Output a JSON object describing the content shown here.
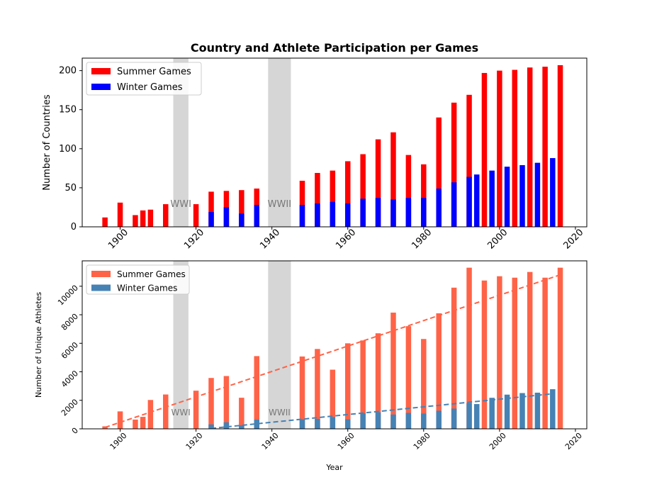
{
  "chart_data": [
    {
      "type": "bar",
      "title": "Country and Athlete Participation per Games",
      "xlabel": "",
      "ylabel": "Number of Countries",
      "xlim": [
        1890,
        2023
      ],
      "ylim": [
        0,
        216
      ],
      "xticks": [
        1900,
        1920,
        1940,
        1960,
        1980,
        2000,
        2020
      ],
      "yticks": [
        0,
        50,
        100,
        150,
        200
      ],
      "grid": false,
      "legend_position": "top-left",
      "shaded_periods": [
        {
          "label": "WWI",
          "start": 1914,
          "end": 1918
        },
        {
          "label": "WWII",
          "start": 1939,
          "end": 1945
        }
      ],
      "series": [
        {
          "name": "Summer Games",
          "color": "#ff0000",
          "points": [
            {
              "x": 1896,
              "y": 12
            },
            {
              "x": 1900,
              "y": 31
            },
            {
              "x": 1904,
              "y": 15
            },
            {
              "x": 1906,
              "y": 21
            },
            {
              "x": 1908,
              "y": 22
            },
            {
              "x": 1912,
              "y": 29
            },
            {
              "x": 1920,
              "y": 29
            },
            {
              "x": 1924,
              "y": 45
            },
            {
              "x": 1928,
              "y": 46
            },
            {
              "x": 1932,
              "y": 47
            },
            {
              "x": 1936,
              "y": 49
            },
            {
              "x": 1948,
              "y": 59
            },
            {
              "x": 1952,
              "y": 69
            },
            {
              "x": 1956,
              "y": 72
            },
            {
              "x": 1960,
              "y": 84
            },
            {
              "x": 1964,
              "y": 93
            },
            {
              "x": 1968,
              "y": 112
            },
            {
              "x": 1972,
              "y": 121
            },
            {
              "x": 1976,
              "y": 92
            },
            {
              "x": 1980,
              "y": 80
            },
            {
              "x": 1984,
              "y": 140
            },
            {
              "x": 1988,
              "y": 159
            },
            {
              "x": 1992,
              "y": 169
            },
            {
              "x": 1996,
              "y": 197
            },
            {
              "x": 2000,
              "y": 200
            },
            {
              "x": 2004,
              "y": 201
            },
            {
              "x": 2008,
              "y": 204
            },
            {
              "x": 2012,
              "y": 205
            },
            {
              "x": 2016,
              "y": 207
            }
          ]
        },
        {
          "name": "Winter Games",
          "color": "#0000ff",
          "points": [
            {
              "x": 1924,
              "y": 19
            },
            {
              "x": 1928,
              "y": 25
            },
            {
              "x": 1932,
              "y": 17
            },
            {
              "x": 1936,
              "y": 28
            },
            {
              "x": 1948,
              "y": 28
            },
            {
              "x": 1952,
              "y": 30
            },
            {
              "x": 1956,
              "y": 32
            },
            {
              "x": 1960,
              "y": 30
            },
            {
              "x": 1964,
              "y": 36
            },
            {
              "x": 1968,
              "y": 37
            },
            {
              "x": 1972,
              "y": 35
            },
            {
              "x": 1976,
              "y": 37
            },
            {
              "x": 1980,
              "y": 37
            },
            {
              "x": 1984,
              "y": 49
            },
            {
              "x": 1988,
              "y": 57
            },
            {
              "x": 1992,
              "y": 64
            },
            {
              "x": 1994,
              "y": 67
            },
            {
              "x": 1998,
              "y": 72
            },
            {
              "x": 2002,
              "y": 77
            },
            {
              "x": 2006,
              "y": 79
            },
            {
              "x": 2010,
              "y": 82
            },
            {
              "x": 2014,
              "y": 88
            }
          ]
        }
      ]
    },
    {
      "type": "bar",
      "title": "",
      "xlabel": "Year",
      "ylabel": "Number of Unique Athletes",
      "xlim": [
        1890,
        2023
      ],
      "ylim": [
        0,
        11780
      ],
      "xticks": [
        1900,
        1920,
        1940,
        1960,
        1980,
        2000,
        2020
      ],
      "yticks": [
        0,
        2000,
        4000,
        6000,
        8000,
        10000
      ],
      "grid": false,
      "legend_position": "top-left",
      "shaded_periods": [
        {
          "label": "WWI",
          "start": 1914,
          "end": 1918
        },
        {
          "label": "WWII",
          "start": 1939,
          "end": 1945
        }
      ],
      "series": [
        {
          "name": "Summer Games",
          "color": "#ff6347",
          "points": [
            {
              "x": 1896,
              "y": 176
            },
            {
              "x": 1900,
              "y": 1224
            },
            {
              "x": 1904,
              "y": 650
            },
            {
              "x": 1906,
              "y": 841
            },
            {
              "x": 1908,
              "y": 2024
            },
            {
              "x": 1912,
              "y": 2409
            },
            {
              "x": 1920,
              "y": 2676
            },
            {
              "x": 1924,
              "y": 3567
            },
            {
              "x": 1928,
              "y": 3703
            },
            {
              "x": 1932,
              "y": 2180
            },
            {
              "x": 1936,
              "y": 5100
            },
            {
              "x": 1948,
              "y": 5073
            },
            {
              "x": 1952,
              "y": 5600
            },
            {
              "x": 1956,
              "y": 4148
            },
            {
              "x": 1960,
              "y": 5997
            },
            {
              "x": 1964,
              "y": 6200
            },
            {
              "x": 1968,
              "y": 6700
            },
            {
              "x": 1972,
              "y": 8150
            },
            {
              "x": 1976,
              "y": 7200
            },
            {
              "x": 1980,
              "y": 6300
            },
            {
              "x": 1984,
              "y": 8100
            },
            {
              "x": 1988,
              "y": 9900
            },
            {
              "x": 1992,
              "y": 11300
            },
            {
              "x": 1996,
              "y": 10400
            },
            {
              "x": 2000,
              "y": 10700
            },
            {
              "x": 2004,
              "y": 10600
            },
            {
              "x": 2008,
              "y": 11000
            },
            {
              "x": 2012,
              "y": 10600
            },
            {
              "x": 2016,
              "y": 11300
            }
          ]
        },
        {
          "name": "Winter Games",
          "color": "#4682b4",
          "points": [
            {
              "x": 1924,
              "y": 313
            },
            {
              "x": 1928,
              "y": 460
            },
            {
              "x": 1932,
              "y": 252
            },
            {
              "x": 1936,
              "y": 646
            },
            {
              "x": 1948,
              "y": 668
            },
            {
              "x": 1952,
              "y": 694
            },
            {
              "x": 1956,
              "y": 821
            },
            {
              "x": 1960,
              "y": 665
            },
            {
              "x": 1964,
              "y": 1091
            },
            {
              "x": 1968,
              "y": 1158
            },
            {
              "x": 1972,
              "y": 1006
            },
            {
              "x": 1976,
              "y": 1123
            },
            {
              "x": 1980,
              "y": 1072
            },
            {
              "x": 1984,
              "y": 1272
            },
            {
              "x": 1988,
              "y": 1423
            },
            {
              "x": 1992,
              "y": 1801
            },
            {
              "x": 1994,
              "y": 1737
            },
            {
              "x": 1998,
              "y": 2176
            },
            {
              "x": 2002,
              "y": 2399
            },
            {
              "x": 2006,
              "y": 2508
            },
            {
              "x": 2010,
              "y": 2536
            },
            {
              "x": 2014,
              "y": 2780
            }
          ]
        }
      ],
      "trend_lines": [
        {
          "series": "Summer Games",
          "color": "#ff6347",
          "style": "dashed",
          "from": {
            "x": 1896,
            "y": 100
          },
          "to": {
            "x": 2016,
            "y": 10800
          }
        },
        {
          "series": "Winter Games",
          "color": "#4682b4",
          "style": "dashed",
          "from": {
            "x": 1924,
            "y": 30
          },
          "to": {
            "x": 2014,
            "y": 2460
          }
        }
      ]
    }
  ]
}
